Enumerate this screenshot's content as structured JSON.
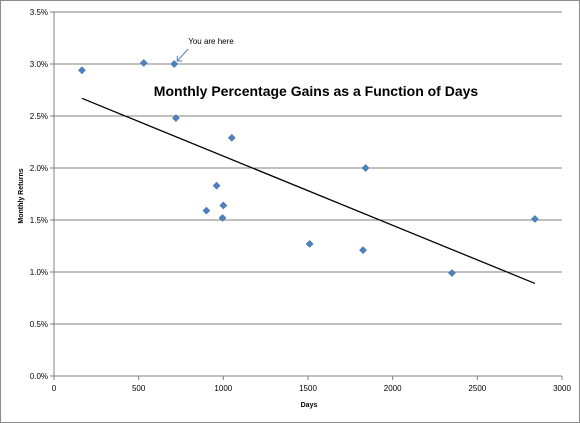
{
  "chart_data": {
    "type": "scatter",
    "title": "Monthly Percentage Gains as a Function of Days",
    "xlabel": "Days",
    "ylabel": "Monthly Returns",
    "xlim": [
      0,
      3000
    ],
    "ylim": [
      0.0,
      3.5
    ],
    "x_ticks": [
      0,
      500,
      1000,
      1500,
      2000,
      2500,
      3000
    ],
    "y_ticks": [
      0.0,
      0.5,
      1.0,
      1.5,
      2.0,
      2.5,
      3.0,
      3.5
    ],
    "y_tick_labels": [
      "0.0%",
      "0.5%",
      "1.0%",
      "1.5%",
      "2.0%",
      "2.5%",
      "3.0%",
      "3.5%"
    ],
    "grid": "horizontal",
    "marker_color": "#4f81bd",
    "points": [
      {
        "x": 165,
        "y": 2.94
      },
      {
        "x": 530,
        "y": 3.01
      },
      {
        "x": 710,
        "y": 3.0
      },
      {
        "x": 720,
        "y": 2.48
      },
      {
        "x": 900,
        "y": 1.59
      },
      {
        "x": 960,
        "y": 1.83
      },
      {
        "x": 995,
        "y": 1.52
      },
      {
        "x": 1000,
        "y": 1.64
      },
      {
        "x": 1050,
        "y": 2.29
      },
      {
        "x": 1510,
        "y": 1.27
      },
      {
        "x": 1825,
        "y": 1.21
      },
      {
        "x": 1840,
        "y": 2.0
      },
      {
        "x": 2350,
        "y": 0.99
      },
      {
        "x": 2840,
        "y": 1.51
      }
    ],
    "trendline": {
      "x": [
        165,
        2840
      ],
      "y": [
        2.67,
        0.89
      ]
    },
    "annotation": {
      "text": "You are here",
      "x": 710,
      "y": 3.0
    }
  }
}
